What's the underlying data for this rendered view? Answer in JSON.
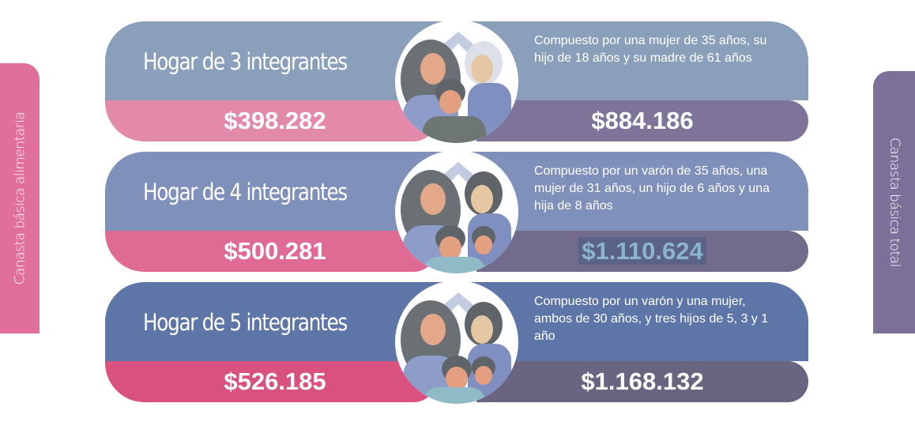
{
  "side_labels": {
    "left": "Canasta básica alimentaria",
    "right": "Canasta básica total"
  },
  "colors": {
    "left_tab": "#e07099",
    "right_tab": "#7b7198"
  },
  "rows": [
    {
      "title": "Hogar de 3 integrantes",
      "description": "Compuesto por una mujer de 35 años, su hijo de 18 años y su madre de 61 años",
      "cba": "$398.282",
      "cbt": "$884.186",
      "top": "#8a9fba",
      "left": "#e389aa",
      "right": "#7e7399",
      "icon": "family-of-3-illustration"
    },
    {
      "title": "Hogar de 4 integrantes",
      "description": "Compuesto por un varón de 35 años, una mujer de 31 años, un hijo de 6 años y una hija de 8 años",
      "cba": "$500.281",
      "cbt": "$1.110.624",
      "top": "#7f90bb",
      "left": "#df6b94",
      "right": "#736b8c",
      "icon": "family-of-4-illustration"
    },
    {
      "title": "Hogar de 5 integrantes",
      "description": "Compuesto por un varón y una mujer, ambos de 30 años, y tres hijos de 5, 3 y 1 año",
      "cba": "$526.185",
      "cbt": "$1.168.132",
      "top": "#5e75a8",
      "left": "#d9517f",
      "right": "#6a6480",
      "icon": "family-of-5-illustration"
    }
  ]
}
